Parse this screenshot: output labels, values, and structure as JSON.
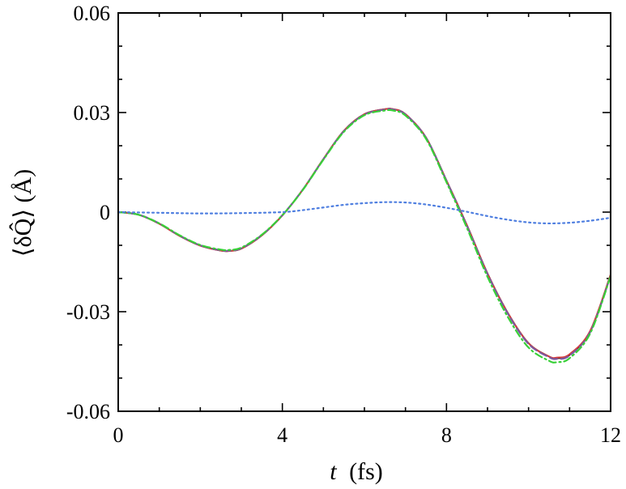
{
  "chart_data": {
    "type": "line",
    "xlabel_symbol": "t",
    "xlabel_unit": "(fs)",
    "ylabel_text": "⟨δQ̂⟩ (Å)",
    "xlim": [
      0,
      12
    ],
    "ylim": [
      -0.06,
      0.06
    ],
    "x_ticks": [
      0,
      4,
      8,
      12
    ],
    "x_tick_labels": [
      "0",
      "4",
      "8",
      "12"
    ],
    "y_ticks": [
      -0.06,
      -0.03,
      0,
      0.03,
      0.06
    ],
    "y_tick_labels": [
      "-0.06",
      "-0.03",
      "0",
      "0.03",
      "0.06"
    ],
    "x_minor_step": 1,
    "y_minor_step": 0.01,
    "grid": false,
    "series": [
      {
        "color": "#1a1a1a",
        "style": "solid",
        "x": [
          0,
          0.5,
          1,
          1.5,
          2,
          2.5,
          2.7,
          3,
          3.5,
          4,
          4.5,
          5,
          5.5,
          6,
          6.5,
          6.7,
          7,
          7.5,
          8,
          8.5,
          9,
          9.5,
          10,
          10.5,
          10.7,
          11,
          11.5,
          12
        ],
        "y": [
          0,
          -0.0008,
          -0.0035,
          -0.0072,
          -0.0101,
          -0.0116,
          -0.0117,
          -0.011,
          -0.007,
          -0.001,
          0.0068,
          0.016,
          0.0245,
          0.0295,
          0.031,
          0.031,
          0.0295,
          0.0225,
          0.0095,
          -0.004,
          -0.0185,
          -0.0305,
          -0.0395,
          -0.0435,
          -0.044,
          -0.043,
          -0.036,
          -0.019
        ]
      },
      {
        "color": "#d63b3b",
        "style": "solid",
        "x": [
          0,
          0.5,
          1,
          1.5,
          2,
          2.5,
          2.7,
          3,
          3.5,
          4,
          4.5,
          5,
          5.5,
          6,
          6.5,
          6.7,
          7,
          7.5,
          8,
          8.5,
          9,
          9.5,
          10,
          10.5,
          10.7,
          11,
          11.5,
          12
        ],
        "y": [
          0,
          -0.0008,
          -0.0035,
          -0.0072,
          -0.0101,
          -0.0116,
          -0.0117,
          -0.011,
          -0.007,
          -0.001,
          0.0068,
          0.016,
          0.0245,
          0.0295,
          0.031,
          0.031,
          0.0295,
          0.0225,
          0.0095,
          -0.004,
          -0.0185,
          -0.0305,
          -0.0395,
          -0.0435,
          -0.0438,
          -0.0428,
          -0.0358,
          -0.0188
        ]
      },
      {
        "color": "#7a5aa0",
        "style": "dashed",
        "x": [
          0,
          0.5,
          1,
          1.5,
          2,
          2.5,
          2.7,
          3,
          3.5,
          4,
          4.5,
          5,
          5.5,
          6,
          6.5,
          6.7,
          7,
          7.5,
          8,
          8.5,
          9,
          9.5,
          10,
          10.5,
          10.7,
          11,
          11.5,
          12
        ],
        "y": [
          0,
          -0.0008,
          -0.0034,
          -0.0071,
          -0.01,
          -0.0115,
          -0.0116,
          -0.0109,
          -0.0069,
          -0.0009,
          0.0068,
          0.0159,
          0.0244,
          0.0294,
          0.0309,
          0.0309,
          0.0294,
          0.0224,
          0.0094,
          -0.0042,
          -0.0187,
          -0.0307,
          -0.0397,
          -0.0437,
          -0.0442,
          -0.0432,
          -0.0362,
          -0.0192
        ]
      },
      {
        "color": "#38d038",
        "style": "dashdot",
        "x": [
          0,
          0.5,
          1,
          1.5,
          2,
          2.5,
          2.7,
          3,
          3.5,
          4,
          4.5,
          5,
          5.5,
          6,
          6.5,
          6.7,
          7,
          7.5,
          8,
          8.5,
          9,
          9.5,
          10,
          10.5,
          10.7,
          11,
          11.5,
          12
        ],
        "y": [
          0,
          -0.0008,
          -0.0034,
          -0.007,
          -0.0099,
          -0.0113,
          -0.0114,
          -0.0107,
          -0.0068,
          -0.0009,
          0.0067,
          0.0158,
          0.0242,
          0.0292,
          0.0306,
          0.0306,
          0.0291,
          0.0221,
          0.009,
          -0.0048,
          -0.0195,
          -0.0317,
          -0.0408,
          -0.0448,
          -0.0452,
          -0.044,
          -0.0366,
          -0.0193
        ]
      },
      {
        "color": "#4f7fe0",
        "style": "dotted",
        "x": [
          0,
          1,
          2,
          3,
          4,
          4.5,
          5,
          5.5,
          6,
          6.5,
          7,
          7.5,
          8,
          8.5,
          9,
          9.5,
          10,
          10.5,
          11,
          11.5,
          12
        ],
        "y": [
          0,
          -0.0002,
          -0.0004,
          -0.0003,
          0.0,
          0.0006,
          0.0014,
          0.0022,
          0.0027,
          0.003,
          0.0029,
          0.0023,
          0.0013,
          0.0001,
          -0.0012,
          -0.0023,
          -0.0031,
          -0.0034,
          -0.0032,
          -0.0026,
          -0.0017
        ]
      }
    ]
  }
}
